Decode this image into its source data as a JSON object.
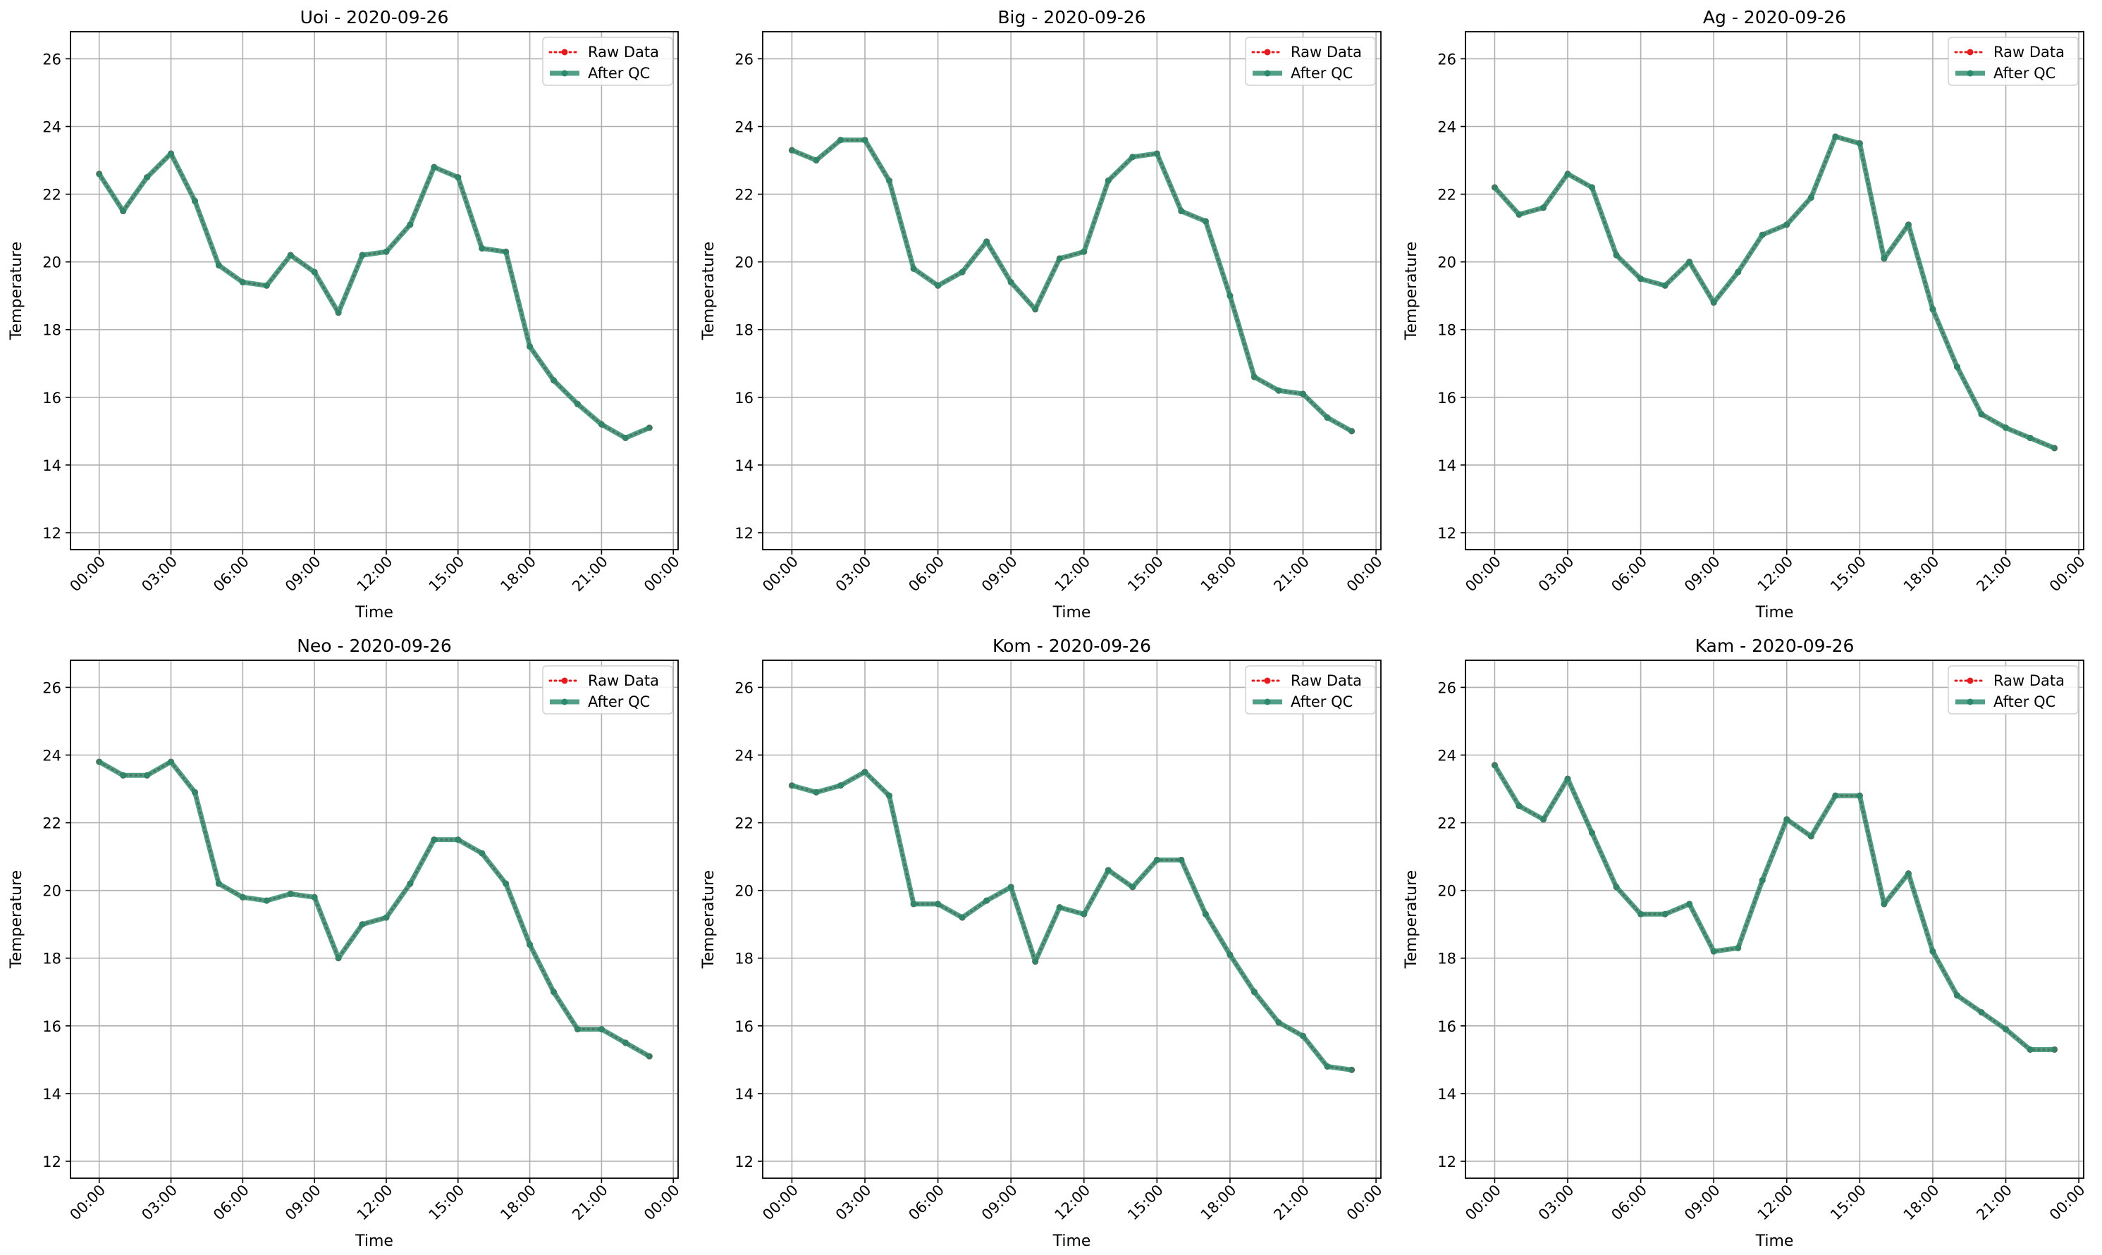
{
  "legend": {
    "raw_label": "Raw Data",
    "qc_label": "After QC"
  },
  "colors": {
    "raw": "#e41a1c",
    "qc": "#2a8a6b",
    "grid": "#b0b0b0",
    "axes": "#000000"
  },
  "chart_data": [
    {
      "type": "line",
      "title": "Uoi - 2020-09-26",
      "xlabel": "Time",
      "ylabel": "Temperature",
      "xlim": [
        -1.2,
        24.2
      ],
      "ylim": [
        11.5,
        26.8
      ],
      "yticks": [
        12,
        14,
        16,
        18,
        20,
        22,
        24,
        26
      ],
      "xtick_hours": [
        0,
        3,
        6,
        9,
        12,
        15,
        18,
        21,
        24
      ],
      "xtick_labels": [
        "00:00",
        "03:00",
        "06:00",
        "09:00",
        "12:00",
        "15:00",
        "18:00",
        "21:00",
        "00:00"
      ],
      "grid": true,
      "legend_position": "top-right",
      "x": [
        0,
        1,
        2,
        3,
        4,
        5,
        6,
        7,
        8,
        9,
        10,
        11,
        12,
        13,
        14,
        15,
        16,
        17,
        18,
        19,
        20,
        21,
        22,
        23
      ],
      "series": [
        {
          "name": "Raw Data",
          "style": "dotted-marker",
          "values": [
            22.6,
            21.5,
            22.5,
            23.2,
            21.8,
            19.9,
            19.4,
            19.3,
            20.2,
            19.7,
            18.5,
            20.2,
            20.3,
            21.1,
            22.8,
            22.5,
            20.4,
            20.3,
            17.5,
            16.5,
            15.8,
            15.2,
            14.8,
            15.1
          ]
        },
        {
          "name": "After QC",
          "style": "solid-marker",
          "values": [
            22.6,
            21.5,
            22.5,
            23.2,
            21.8,
            19.9,
            19.4,
            19.3,
            20.2,
            19.7,
            18.5,
            20.2,
            20.3,
            21.1,
            22.8,
            22.5,
            20.4,
            20.3,
            17.5,
            16.5,
            15.8,
            15.2,
            14.8,
            15.1
          ]
        }
      ]
    },
    {
      "type": "line",
      "title": "Big - 2020-09-26",
      "xlabel": "Time",
      "ylabel": "Temperature",
      "xlim": [
        -1.2,
        24.2
      ],
      "ylim": [
        11.5,
        26.8
      ],
      "yticks": [
        12,
        14,
        16,
        18,
        20,
        22,
        24,
        26
      ],
      "xtick_hours": [
        0,
        3,
        6,
        9,
        12,
        15,
        18,
        21,
        24
      ],
      "xtick_labels": [
        "00:00",
        "03:00",
        "06:00",
        "09:00",
        "12:00",
        "15:00",
        "18:00",
        "21:00",
        "00:00"
      ],
      "grid": true,
      "legend_position": "top-right",
      "x": [
        0,
        1,
        2,
        3,
        4,
        5,
        6,
        7,
        8,
        9,
        10,
        11,
        12,
        13,
        14,
        15,
        16,
        17,
        18,
        19,
        20,
        21,
        22,
        23
      ],
      "series": [
        {
          "name": "Raw Data",
          "style": "dotted-marker",
          "values": [
            23.3,
            23.0,
            23.6,
            23.6,
            22.4,
            19.8,
            19.3,
            19.7,
            20.6,
            19.4,
            18.6,
            20.1,
            20.3,
            22.4,
            23.1,
            23.2,
            21.5,
            21.2,
            19.0,
            16.6,
            16.2,
            16.1,
            15.4,
            15.0
          ]
        },
        {
          "name": "After QC",
          "style": "solid-marker",
          "values": [
            23.3,
            23.0,
            23.6,
            23.6,
            22.4,
            19.8,
            19.3,
            19.7,
            20.6,
            19.4,
            18.6,
            20.1,
            20.3,
            22.4,
            23.1,
            23.2,
            21.5,
            21.2,
            19.0,
            16.6,
            16.2,
            16.1,
            15.4,
            15.0
          ]
        }
      ]
    },
    {
      "type": "line",
      "title": "Ag - 2020-09-26",
      "xlabel": "Time",
      "ylabel": "Temperature",
      "xlim": [
        -1.2,
        24.2
      ],
      "ylim": [
        11.5,
        26.8
      ],
      "yticks": [
        12,
        14,
        16,
        18,
        20,
        22,
        24,
        26
      ],
      "xtick_hours": [
        0,
        3,
        6,
        9,
        12,
        15,
        18,
        21,
        24
      ],
      "xtick_labels": [
        "00:00",
        "03:00",
        "06:00",
        "09:00",
        "12:00",
        "15:00",
        "18:00",
        "21:00",
        "00:00"
      ],
      "grid": true,
      "legend_position": "top-right",
      "x": [
        0,
        1,
        2,
        3,
        4,
        5,
        6,
        7,
        8,
        9,
        10,
        11,
        12,
        13,
        14,
        15,
        16,
        17,
        18,
        19,
        20,
        21,
        22,
        23
      ],
      "series": [
        {
          "name": "Raw Data",
          "style": "dotted-marker",
          "values": [
            22.2,
            21.4,
            21.6,
            22.6,
            22.2,
            20.2,
            19.5,
            19.3,
            20.0,
            18.8,
            19.7,
            20.8,
            21.1,
            21.9,
            23.7,
            23.5,
            20.1,
            21.1,
            18.6,
            16.9,
            15.5,
            15.1,
            14.8,
            14.5
          ]
        },
        {
          "name": "After QC",
          "style": "solid-marker",
          "values": [
            22.2,
            21.4,
            21.6,
            22.6,
            22.2,
            20.2,
            19.5,
            19.3,
            20.0,
            18.8,
            19.7,
            20.8,
            21.1,
            21.9,
            23.7,
            23.5,
            20.1,
            21.1,
            18.6,
            16.9,
            15.5,
            15.1,
            14.8,
            14.5
          ]
        }
      ]
    },
    {
      "type": "line",
      "title": "Neo - 2020-09-26",
      "xlabel": "Time",
      "ylabel": "Temperature",
      "xlim": [
        -1.2,
        24.2
      ],
      "ylim": [
        11.5,
        26.8
      ],
      "yticks": [
        12,
        14,
        16,
        18,
        20,
        22,
        24,
        26
      ],
      "xtick_hours": [
        0,
        3,
        6,
        9,
        12,
        15,
        18,
        21,
        24
      ],
      "xtick_labels": [
        "00:00",
        "03:00",
        "06:00",
        "09:00",
        "12:00",
        "15:00",
        "18:00",
        "21:00",
        "00:00"
      ],
      "grid": true,
      "legend_position": "top-right",
      "x": [
        0,
        1,
        2,
        3,
        4,
        5,
        6,
        7,
        8,
        9,
        10,
        11,
        12,
        13,
        14,
        15,
        16,
        17,
        18,
        19,
        20,
        21,
        22,
        23
      ],
      "series": [
        {
          "name": "Raw Data",
          "style": "dotted-marker",
          "values": [
            23.8,
            23.4,
            23.4,
            23.8,
            22.9,
            20.2,
            19.8,
            19.7,
            19.9,
            19.8,
            18.0,
            19.0,
            19.2,
            20.2,
            21.5,
            21.5,
            21.1,
            20.2,
            18.4,
            17.0,
            15.9,
            15.9,
            15.5,
            15.1
          ]
        },
        {
          "name": "After QC",
          "style": "solid-marker",
          "values": [
            23.8,
            23.4,
            23.4,
            23.8,
            22.9,
            20.2,
            19.8,
            19.7,
            19.9,
            19.8,
            18.0,
            19.0,
            19.2,
            20.2,
            21.5,
            21.5,
            21.1,
            20.2,
            18.4,
            17.0,
            15.9,
            15.9,
            15.5,
            15.1
          ]
        }
      ]
    },
    {
      "type": "line",
      "title": "Kom - 2020-09-26",
      "xlabel": "Time",
      "ylabel": "Temperature",
      "xlim": [
        -1.2,
        24.2
      ],
      "ylim": [
        11.5,
        26.8
      ],
      "yticks": [
        12,
        14,
        16,
        18,
        20,
        22,
        24,
        26
      ],
      "xtick_hours": [
        0,
        3,
        6,
        9,
        12,
        15,
        18,
        21,
        24
      ],
      "xtick_labels": [
        "00:00",
        "03:00",
        "06:00",
        "09:00",
        "12:00",
        "15:00",
        "18:00",
        "21:00",
        "00:00"
      ],
      "grid": true,
      "legend_position": "top-right",
      "x": [
        0,
        1,
        2,
        3,
        4,
        5,
        6,
        7,
        8,
        9,
        10,
        11,
        12,
        13,
        14,
        15,
        16,
        17,
        18,
        19,
        20,
        21,
        22,
        23
      ],
      "series": [
        {
          "name": "Raw Data",
          "style": "dotted-marker",
          "values": [
            23.1,
            22.9,
            23.1,
            23.5,
            22.8,
            19.6,
            19.6,
            19.2,
            19.7,
            20.1,
            17.9,
            19.5,
            19.3,
            20.6,
            20.1,
            20.9,
            20.9,
            19.3,
            18.1,
            17.0,
            16.1,
            15.7,
            14.8,
            14.7
          ]
        },
        {
          "name": "After QC",
          "style": "solid-marker",
          "values": [
            23.1,
            22.9,
            23.1,
            23.5,
            22.8,
            19.6,
            19.6,
            19.2,
            19.7,
            20.1,
            17.9,
            19.5,
            19.3,
            20.6,
            20.1,
            20.9,
            20.9,
            19.3,
            18.1,
            17.0,
            16.1,
            15.7,
            14.8,
            14.7
          ]
        }
      ]
    },
    {
      "type": "line",
      "title": "Kam - 2020-09-26",
      "xlabel": "Time",
      "ylabel": "Temperature",
      "xlim": [
        -1.2,
        24.2
      ],
      "ylim": [
        11.5,
        26.8
      ],
      "yticks": [
        12,
        14,
        16,
        18,
        20,
        22,
        24,
        26
      ],
      "xtick_hours": [
        0,
        3,
        6,
        9,
        12,
        15,
        18,
        21,
        24
      ],
      "xtick_labels": [
        "00:00",
        "03:00",
        "06:00",
        "09:00",
        "12:00",
        "15:00",
        "18:00",
        "21:00",
        "00:00"
      ],
      "grid": true,
      "legend_position": "top-right",
      "x": [
        0,
        1,
        2,
        3,
        4,
        5,
        6,
        7,
        8,
        9,
        10,
        11,
        12,
        13,
        14,
        15,
        16,
        17,
        18,
        19,
        20,
        21,
        22,
        23
      ],
      "series": [
        {
          "name": "Raw Data",
          "style": "dotted-marker",
          "values": [
            23.7,
            22.5,
            22.1,
            23.3,
            21.7,
            20.1,
            19.3,
            19.3,
            19.6,
            18.2,
            18.3,
            20.3,
            22.1,
            21.6,
            22.8,
            22.8,
            19.6,
            20.5,
            18.2,
            16.9,
            16.4,
            15.9,
            15.3,
            15.3
          ]
        },
        {
          "name": "After QC",
          "style": "solid-marker",
          "values": [
            23.7,
            22.5,
            22.1,
            23.3,
            21.7,
            20.1,
            19.3,
            19.3,
            19.6,
            18.2,
            18.3,
            20.3,
            22.1,
            21.6,
            22.8,
            22.8,
            19.6,
            20.5,
            18.2,
            16.9,
            16.4,
            15.9,
            15.3,
            15.3
          ]
        }
      ]
    }
  ]
}
